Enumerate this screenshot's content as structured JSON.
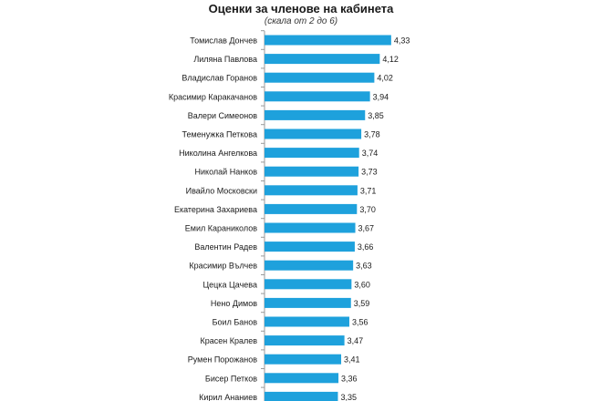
{
  "chart_data": {
    "type": "bar",
    "orientation": "horizontal",
    "title": "Оценки за членове на кабинета",
    "subtitle": "(скала от 2 до 6)",
    "categories": [
      "Томислав Дончев",
      "Лиляна Павлова",
      "Владислав Горанов",
      "Красимир Каракачанов",
      "Валери Симеонов",
      "Теменужка Петкова",
      "Николина Ангелкова",
      "Николай Нанков",
      "Ивайло Московски",
      "Екатерина Захариева",
      "Емил Караниколов",
      "Валентин Радев",
      "Красимир Вълчев",
      "Цецка Цачева",
      "Нено Димов",
      "Боил Банов",
      "Красен Кралев",
      "Румен Порожанов",
      "Бисер Петков",
      "Кирил Ананиев"
    ],
    "values": [
      4.33,
      4.12,
      4.02,
      3.94,
      3.85,
      3.78,
      3.74,
      3.73,
      3.71,
      3.7,
      3.67,
      3.66,
      3.63,
      3.6,
      3.59,
      3.56,
      3.47,
      3.41,
      3.36,
      3.35
    ],
    "value_labels": [
      "4,33",
      "4,12",
      "4,02",
      "3,94",
      "3,85",
      "3,78",
      "3,74",
      "3,73",
      "3,71",
      "3,70",
      "3,67",
      "3,66",
      "3,63",
      "3,60",
      "3,59",
      "3,56",
      "3,47",
      "3,41",
      "3,36",
      "3,35"
    ],
    "xlim": [
      2,
      6
    ],
    "grid": false,
    "legend": "none",
    "bar_color": "#1ea1dc"
  }
}
